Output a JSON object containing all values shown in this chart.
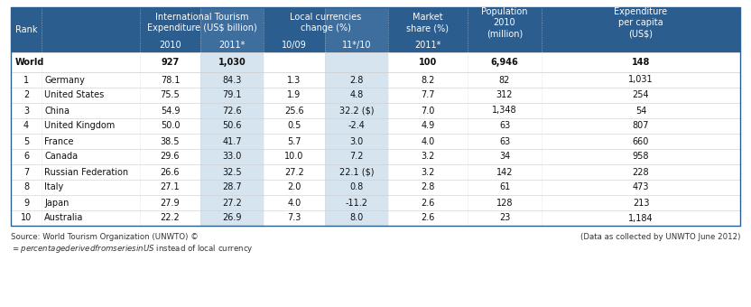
{
  "data_rows": [
    [
      "1",
      "Germany",
      "78.1",
      "84.3",
      "1.3",
      "2.8",
      "8.2",
      "82",
      "1,031"
    ],
    [
      "2",
      "United States",
      "75.5",
      "79.1",
      "1.9",
      "4.8",
      "7.7",
      "312",
      "254"
    ],
    [
      "3",
      "China",
      "54.9",
      "72.6",
      "25.6",
      "32.2 ($)",
      "7.0",
      "1,348",
      "54"
    ],
    [
      "4",
      "United Kingdom",
      "50.0",
      "50.6",
      "0.5",
      "-2.4",
      "4.9",
      "63",
      "807"
    ],
    [
      "5",
      "France",
      "38.5",
      "41.7",
      "5.7",
      "3.0",
      "4.0",
      "63",
      "660"
    ],
    [
      "6",
      "Canada",
      "29.6",
      "33.0",
      "10.0",
      "7.2",
      "3.2",
      "34",
      "958"
    ],
    [
      "7",
      "Russian Federation",
      "26.6",
      "32.5",
      "27.2",
      "22.1 ($)",
      "3.2",
      "142",
      "228"
    ],
    [
      "8",
      "Italy",
      "27.1",
      "28.7",
      "2.0",
      "0.8",
      "2.8",
      "61",
      "473"
    ],
    [
      "9",
      "Japan",
      "27.9",
      "27.2",
      "4.0",
      "-11.2",
      "2.6",
      "128",
      "213"
    ],
    [
      "10",
      "Australia",
      "22.2",
      "26.9",
      "7.3",
      "8.0",
      "2.6",
      "23",
      "1,184"
    ]
  ],
  "world_row": [
    "World",
    "",
    "927",
    "1,030",
    "",
    "",
    "100",
    "6,946",
    "148"
  ],
  "footer_left1": "Source: World Tourism Organization (UNWTO) ©",
  "footer_left2": "$ = percentage derived from series in US$ instead of local currency",
  "footer_right": "(Data as collected by UNWTO June 2012)",
  "header_bg": "#2B5D8E",
  "header_highlight_bg": "#3D6E9E",
  "header_text": "#FFFFFF",
  "data_highlight_bg": "#D6E4F0",
  "row_sep_color": "#CCCCCC",
  "outer_border": "#2B5D8E",
  "font_size": 7.0,
  "header_font_size": 7.0
}
